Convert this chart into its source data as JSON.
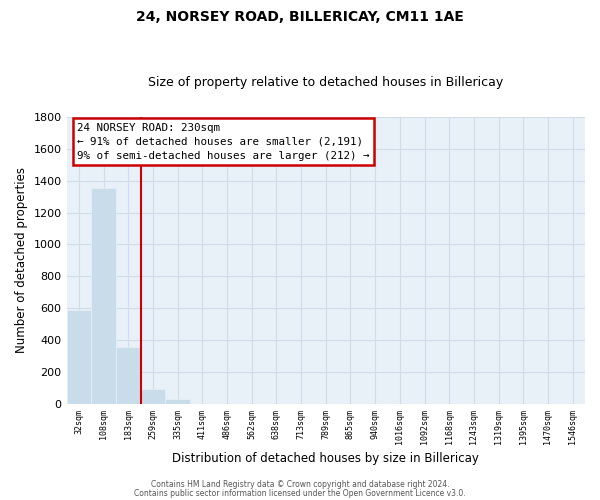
{
  "title": "24, NORSEY ROAD, BILLERICAY, CM11 1AE",
  "subtitle": "Size of property relative to detached houses in Billericay",
  "xlabel": "Distribution of detached houses by size in Billericay",
  "ylabel": "Number of detached properties",
  "bar_values": [
    590,
    1355,
    355,
    95,
    30,
    0,
    0,
    0,
    0,
    0,
    0,
    0,
    0,
    0,
    0,
    0,
    0,
    0,
    0,
    0
  ],
  "bar_labels": [
    "32sqm",
    "108sqm",
    "183sqm",
    "259sqm",
    "335sqm",
    "411sqm",
    "486sqm",
    "562sqm",
    "638sqm",
    "713sqm",
    "789sqm",
    "865sqm",
    "940sqm",
    "1016sqm",
    "1092sqm",
    "1168sqm",
    "1243sqm",
    "1319sqm",
    "1395sqm",
    "1470sqm",
    "1546sqm"
  ],
  "bar_color": "#c9dce9",
  "ylim": [
    0,
    1800
  ],
  "yticks": [
    0,
    200,
    400,
    600,
    800,
    1000,
    1200,
    1400,
    1600,
    1800
  ],
  "property_line_x": 2.5,
  "annotation_title": "24 NORSEY ROAD: 230sqm",
  "annotation_line1": "← 91% of detached houses are smaller (2,191)",
  "annotation_line2": "9% of semi-detached houses are larger (212) →",
  "annotation_box_color": "#ffffff",
  "annotation_box_edgecolor": "#cc0000",
  "footer_line1": "Contains HM Land Registry data © Crown copyright and database right 2024.",
  "footer_line2": "Contains public sector information licensed under the Open Government Licence v3.0.",
  "grid_color": "#d0dce8",
  "plot_bg_color": "#e8f0f8",
  "background_color": "#ffffff"
}
